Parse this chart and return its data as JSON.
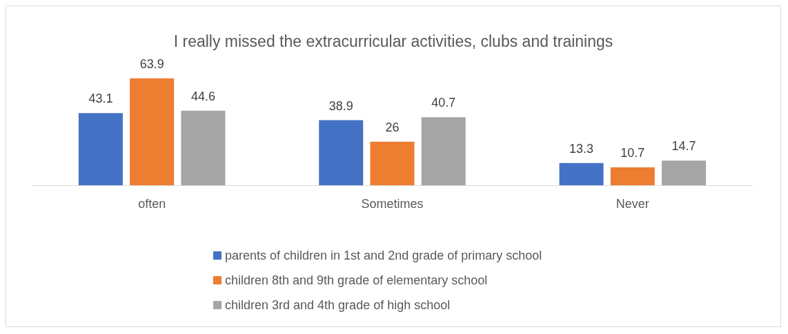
{
  "chart_data": {
    "type": "bar",
    "title": "I really missed the extracurricular activities, clubs and trainings",
    "categories": [
      "often",
      "Sometimes",
      "Never"
    ],
    "series": [
      {
        "name": "parents of children in 1st and 2nd grade of primary school",
        "color": "#4472c4",
        "values": [
          43.1,
          38.9,
          13.3
        ]
      },
      {
        "name": "children 8th and 9th grade of elementary school",
        "color": "#ed7d31",
        "values": [
          63.9,
          26,
          10.7
        ]
      },
      {
        "name": "children 3rd and 4th grade of high school",
        "color": "#a5a5a5",
        "values": [
          44.6,
          40.7,
          14.7
        ]
      }
    ],
    "data_labels": true,
    "legend": "bottom"
  }
}
